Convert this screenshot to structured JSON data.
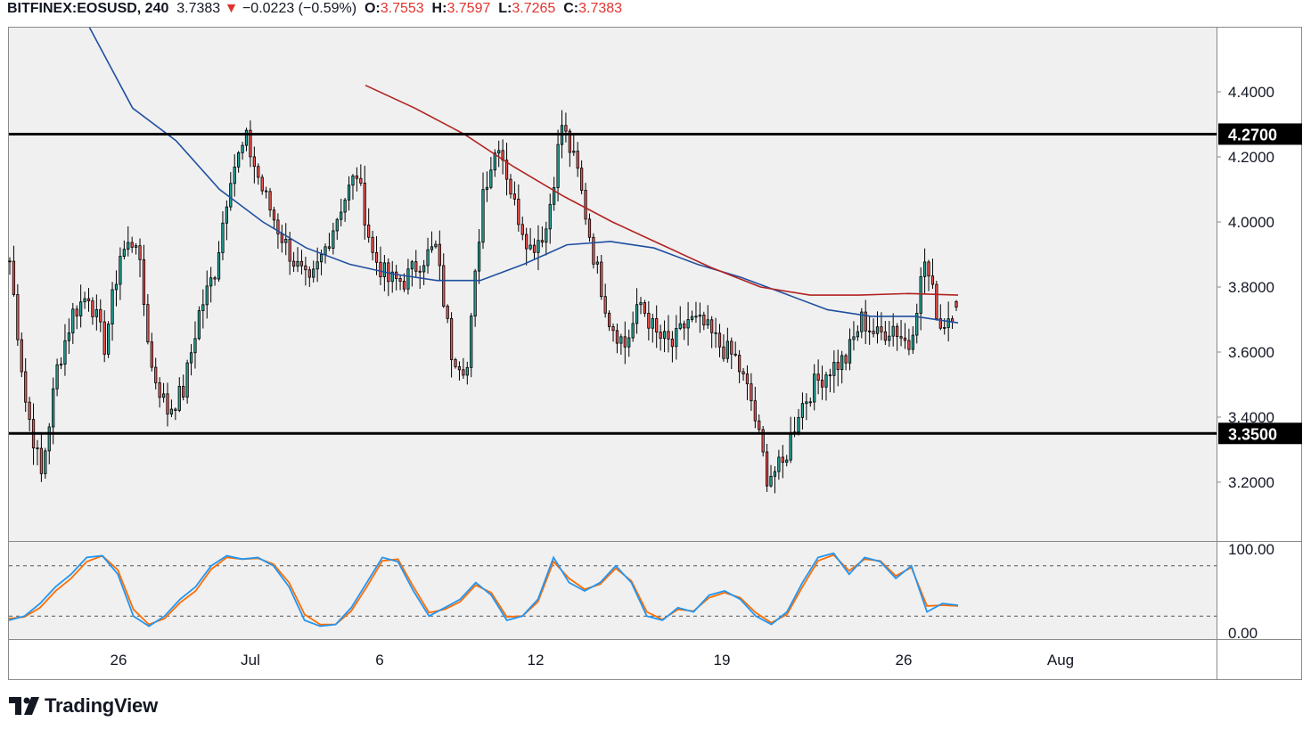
{
  "header": {
    "symbol": "BITFINEX:EOSUSD, 240",
    "last": "3.7383",
    "arrow": "▼",
    "change": "−0.0223 (−0.59%)",
    "o_label": "O:",
    "o_value": "3.7553",
    "h_label": "H:",
    "h_value": "3.7597",
    "l_label": "L:",
    "l_value": "3.7265",
    "c_label": "C:",
    "c_value": "3.7383"
  },
  "brand": {
    "name": "TradingView",
    "logo_icon": "tradingview-logo-icon"
  },
  "colors": {
    "up": "#26a69a",
    "down": "#ef5350",
    "candle_outline": "#000000",
    "ma_fast": "#1f4fa0",
    "ma_slow": "#b22222",
    "stoch_k": "#2196f3",
    "stoch_d": "#ff6d00",
    "level_line": "#000000",
    "plot_bg": "#f0f0f0"
  },
  "chart_data": {
    "type": "candlestick",
    "symbol": "BITFINEX:EOSUSD",
    "timeframe": "240",
    "ylim": [
      3.05,
      4.55
    ],
    "price_ticks": [
      "4.4000",
      "4.2000",
      "4.0000",
      "3.8000",
      "3.6000",
      "3.4000",
      "3.2000"
    ],
    "x_ticks": [
      "26",
      "Jul",
      "6",
      "12",
      "19",
      "26",
      "Aug"
    ],
    "levels": [
      {
        "price": 4.27,
        "label": "4.2700"
      },
      {
        "price": 3.35,
        "label": "3.3500"
      }
    ],
    "ohlc_anchor_closes": [
      3.88,
      3.45,
      3.22,
      3.55,
      3.72,
      3.78,
      3.62,
      3.9,
      3.95,
      3.55,
      3.42,
      3.48,
      3.72,
      3.85,
      4.15,
      4.25,
      4.1,
      3.98,
      3.88,
      3.8,
      3.92,
      4.05,
      4.15,
      3.9,
      3.82,
      3.82,
      3.88,
      3.92,
      3.6,
      3.55,
      4.1,
      4.25,
      4.05,
      3.92,
      3.98,
      4.3,
      4.15,
      3.9,
      3.7,
      3.62,
      3.75,
      3.65,
      3.62,
      3.7,
      3.68,
      3.62,
      3.58,
      3.45,
      3.22,
      3.25,
      3.42,
      3.5,
      3.55,
      3.58,
      3.7,
      3.65,
      3.68,
      3.62,
      3.88,
      3.68,
      3.74
    ],
    "ohlc_last": {
      "open": 3.7553,
      "high": 3.7597,
      "low": 3.7265,
      "close": 3.7383
    },
    "ma_fast": [
      4.6,
      4.35,
      4.25,
      4.1,
      4.0,
      3.92,
      3.87,
      3.84,
      3.82,
      3.82,
      3.87,
      3.93,
      3.94,
      3.92,
      3.87,
      3.83,
      3.78,
      3.73,
      3.71,
      3.71,
      3.69
    ],
    "ma_slow": [
      4.42,
      4.35,
      4.27,
      4.17,
      4.08,
      4.0,
      3.93,
      3.86,
      3.8,
      3.775,
      3.775,
      3.78,
      3.775
    ],
    "stochastic": {
      "ylim": [
        0,
        100
      ],
      "ticks": [
        "100.00",
        "0.00"
      ],
      "bands": [
        80,
        20
      ],
      "k": [
        15,
        20,
        35,
        55,
        70,
        90,
        92,
        70,
        20,
        8,
        20,
        40,
        55,
        80,
        92,
        88,
        90,
        80,
        55,
        15,
        8,
        10,
        30,
        60,
        90,
        85,
        50,
        20,
        30,
        40,
        60,
        45,
        15,
        20,
        40,
        90,
        60,
        50,
        60,
        80,
        60,
        20,
        15,
        30,
        25,
        45,
        50,
        40,
        20,
        10,
        25,
        60,
        90,
        95,
        70,
        90,
        85,
        65,
        80,
        25,
        35,
        33
      ],
      "d": [
        17,
        19,
        30,
        50,
        65,
        85,
        92,
        75,
        28,
        10,
        17,
        36,
        50,
        76,
        90,
        88,
        89,
        82,
        60,
        22,
        10,
        10,
        26,
        55,
        86,
        88,
        55,
        24,
        28,
        37,
        57,
        48,
        19,
        20,
        37,
        85,
        65,
        52,
        58,
        77,
        62,
        25,
        16,
        28,
        26,
        42,
        48,
        42,
        24,
        12,
        22,
        55,
        86,
        93,
        74,
        88,
        86,
        68,
        78,
        32,
        33,
        32
      ]
    }
  }
}
